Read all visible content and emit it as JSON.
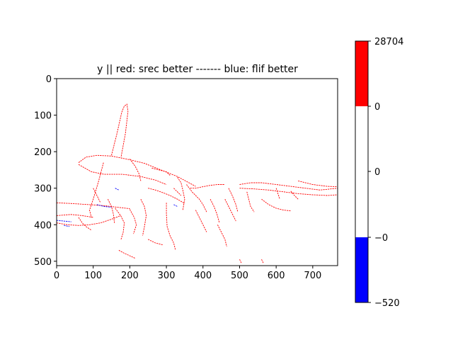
{
  "chart_data": {
    "type": "heatmap",
    "title": "y || red: srec better ------- blue: flif better",
    "xlabel": "",
    "ylabel": "",
    "xlim": [
      0,
      768
    ],
    "ylim": [
      512,
      0
    ],
    "x_ticks": [
      0,
      100,
      200,
      300,
      400,
      500,
      600,
      700
    ],
    "y_ticks": [
      0,
      100,
      200,
      300,
      400,
      500
    ],
    "grid": false,
    "colorbar": {
      "segments": [
        {
          "color": "#0000ff",
          "label": "−520"
        },
        {
          "color": "#ffffff",
          "label": "−0"
        },
        {
          "color": "#ffffff",
          "label": "0"
        },
        {
          "color": "#ffffff",
          "label": "0"
        },
        {
          "color": "#ff0000",
          "label": "28704"
        }
      ],
      "tick_labels": [
        "28704",
        "0",
        "0",
        "−0",
        "−520"
      ]
    },
    "edge_paths_red": [
      [
        [
          150,
          210
        ],
        [
          165,
          150
        ],
        [
          178,
          92
        ],
        [
          185,
          75
        ],
        [
          192,
          70
        ],
        [
          195,
          90
        ],
        [
          188,
          150
        ],
        [
          176,
          215
        ]
      ],
      [
        [
          60,
          230
        ],
        [
          80,
          215
        ],
        [
          110,
          210
        ],
        [
          150,
          212
        ],
        [
          200,
          222
        ],
        [
          240,
          232
        ],
        [
          290,
          252
        ],
        [
          330,
          268
        ],
        [
          380,
          295
        ]
      ],
      [
        [
          60,
          235
        ],
        [
          95,
          255
        ],
        [
          130,
          262
        ],
        [
          180,
          262
        ],
        [
          230,
          268
        ],
        [
          270,
          278
        ],
        [
          300,
          290
        ]
      ],
      [
        [
          128,
          230
        ],
        [
          115,
          280
        ],
        [
          100,
          330
        ],
        [
          90,
          360
        ],
        [
          95,
          380
        ]
      ],
      [
        [
          0,
          340
        ],
        [
          40,
          342
        ],
        [
          90,
          345
        ],
        [
          130,
          348
        ],
        [
          165,
          352
        ],
        [
          200,
          356
        ]
      ],
      [
        [
          0,
          395
        ],
        [
          30,
          400
        ],
        [
          60,
          402
        ],
        [
          90,
          400
        ],
        [
          120,
          395
        ],
        [
          150,
          385
        ],
        [
          175,
          375
        ]
      ],
      [
        [
          0,
          375
        ],
        [
          40,
          372
        ],
        [
          70,
          375
        ],
        [
          100,
          380
        ]
      ],
      [
        [
          160,
          355
        ],
        [
          175,
          375
        ],
        [
          185,
          395
        ],
        [
          182,
          420
        ],
        [
          176,
          440
        ]
      ],
      [
        [
          200,
          358
        ],
        [
          212,
          380
        ],
        [
          218,
          400
        ],
        [
          210,
          425
        ]
      ],
      [
        [
          230,
          330
        ],
        [
          240,
          350
        ],
        [
          245,
          375
        ],
        [
          240,
          405
        ],
        [
          235,
          430
        ]
      ],
      [
        [
          250,
          300
        ],
        [
          270,
          305
        ],
        [
          290,
          312
        ],
        [
          310,
          320
        ],
        [
          330,
          330
        ],
        [
          350,
          342
        ]
      ],
      [
        [
          300,
          340
        ],
        [
          300,
          370
        ],
        [
          302,
          405
        ],
        [
          310,
          430
        ],
        [
          320,
          450
        ],
        [
          325,
          470
        ]
      ],
      [
        [
          330,
          270
        ],
        [
          340,
          285
        ],
        [
          345,
          305
        ],
        [
          350,
          330
        ],
        [
          345,
          360
        ]
      ],
      [
        [
          355,
          290
        ],
        [
          370,
          310
        ],
        [
          380,
          320
        ],
        [
          390,
          330
        ],
        [
          400,
          345
        ],
        [
          410,
          365
        ]
      ],
      [
        [
          365,
          300
        ],
        [
          380,
          300
        ],
        [
          400,
          296
        ],
        [
          420,
          292
        ],
        [
          440,
          290
        ],
        [
          460,
          290
        ]
      ],
      [
        [
          470,
          300
        ],
        [
          480,
          320
        ],
        [
          490,
          345
        ],
        [
          495,
          365
        ]
      ],
      [
        [
          500,
          290
        ],
        [
          530,
          285
        ],
        [
          560,
          285
        ],
        [
          600,
          290
        ],
        [
          640,
          295
        ],
        [
          680,
          300
        ],
        [
          720,
          305
        ],
        [
          768,
          300
        ]
      ],
      [
        [
          500,
          300
        ],
        [
          540,
          302
        ],
        [
          580,
          305
        ],
        [
          620,
          310
        ],
        [
          660,
          315
        ],
        [
          700,
          318
        ],
        [
          740,
          320
        ],
        [
          768,
          318
        ]
      ],
      [
        [
          600,
          300
        ],
        [
          605,
          315
        ],
        [
          610,
          330
        ]
      ],
      [
        [
          640,
          308
        ],
        [
          650,
          320
        ],
        [
          660,
          330
        ]
      ],
      [
        [
          560,
          330
        ],
        [
          580,
          345
        ],
        [
          600,
          355
        ],
        [
          620,
          360
        ],
        [
          640,
          362
        ]
      ],
      [
        [
          520,
          310
        ],
        [
          525,
          330
        ],
        [
          530,
          350
        ],
        [
          540,
          365
        ]
      ],
      [
        [
          460,
          330
        ],
        [
          470,
          350
        ],
        [
          480,
          370
        ],
        [
          490,
          390
        ]
      ],
      [
        [
          170,
          470
        ],
        [
          185,
          478
        ],
        [
          200,
          485
        ],
        [
          215,
          492
        ]
      ],
      [
        [
          250,
          440
        ],
        [
          270,
          450
        ],
        [
          290,
          455
        ]
      ],
      [
        [
          420,
          330
        ],
        [
          430,
          350
        ],
        [
          438,
          370
        ],
        [
          445,
          395
        ]
      ],
      [
        [
          380,
          360
        ],
        [
          390,
          380
        ],
        [
          400,
          400
        ],
        [
          410,
          420
        ]
      ],
      [
        [
          200,
          220
        ],
        [
          215,
          240
        ],
        [
          225,
          260
        ],
        [
          230,
          280
        ]
      ],
      [
        [
          260,
          245
        ],
        [
          280,
          250
        ],
        [
          300,
          255
        ],
        [
          310,
          265
        ]
      ],
      [
        [
          320,
          300
        ],
        [
          330,
          310
        ],
        [
          340,
          320
        ]
      ],
      [
        [
          140,
          330
        ],
        [
          150,
          350
        ],
        [
          155,
          370
        ],
        [
          158,
          395
        ]
      ],
      [
        [
          100,
          300
        ],
        [
          110,
          320
        ],
        [
          120,
          340
        ]
      ],
      [
        [
          60,
          380
        ],
        [
          70,
          395
        ],
        [
          80,
          405
        ],
        [
          95,
          415
        ]
      ],
      [
        [
          440,
          400
        ],
        [
          450,
          420
        ],
        [
          460,
          440
        ],
        [
          465,
          460
        ]
      ],
      [
        [
          560,
          495
        ],
        [
          565,
          505
        ]
      ],
      [
        [
          500,
          495
        ],
        [
          505,
          505
        ]
      ],
      [
        [
          660,
          280
        ],
        [
          700,
          290
        ],
        [
          740,
          295
        ],
        [
          768,
          296
        ]
      ]
    ],
    "edge_paths_blue": [
      [
        [
          0,
          388
        ],
        [
          20,
          390
        ],
        [
          40,
          392
        ]
      ],
      [
        [
          110,
          345
        ],
        [
          130,
          350
        ],
        [
          150,
          352
        ]
      ],
      [
        [
          160,
          300
        ],
        [
          170,
          305
        ]
      ],
      [
        [
          320,
          345
        ],
        [
          330,
          350
        ]
      ],
      [
        [
          20,
          402
        ],
        [
          35,
          405
        ]
      ]
    ]
  }
}
